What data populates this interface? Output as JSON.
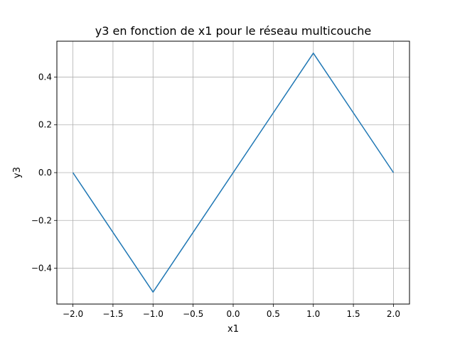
{
  "chart_data": {
    "type": "line",
    "title": "y3 en fonction de x1 pour le réseau multicouche",
    "xlabel": "x1",
    "ylabel": "y3",
    "xlim": [
      -2.2,
      2.2
    ],
    "ylim": [
      -0.55,
      0.55
    ],
    "xticks": [
      -2.0,
      -1.5,
      -1.0,
      -0.5,
      0.0,
      0.5,
      1.0,
      1.5,
      2.0
    ],
    "xtick_labels": [
      "−2.0",
      "−1.5",
      "−1.0",
      "−0.5",
      "0.0",
      "0.5",
      "1.0",
      "1.5",
      "2.0"
    ],
    "yticks": [
      -0.4,
      -0.2,
      0.0,
      0.2,
      0.4
    ],
    "ytick_labels": [
      "−0.4",
      "−0.2",
      "0.0",
      "0.2",
      "0.4"
    ],
    "grid": true,
    "series": [
      {
        "color": "#1f77b4",
        "x": [
          -2.0,
          -1.0,
          1.0,
          2.0
        ],
        "y": [
          0.0,
          -0.5,
          0.5,
          0.0
        ]
      }
    ]
  }
}
